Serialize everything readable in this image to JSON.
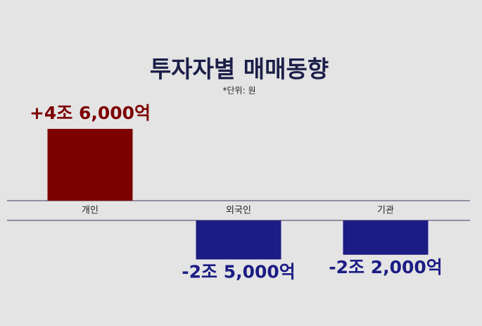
{
  "chart_data": {
    "type": "bar",
    "title": "투자자별 매매동향",
    "subtitle": "*단위: 원",
    "categories": [
      "개인",
      "외국인",
      "기관"
    ],
    "values": [
      4600000000000,
      -2500000000000,
      -2200000000000
    ],
    "value_labels": [
      "+4조 6,000억",
      "-2조 5,000억",
      "-2조 2,000억"
    ],
    "colors": [
      "#7d0000",
      "#1c1c85",
      "#1c1c85"
    ]
  }
}
